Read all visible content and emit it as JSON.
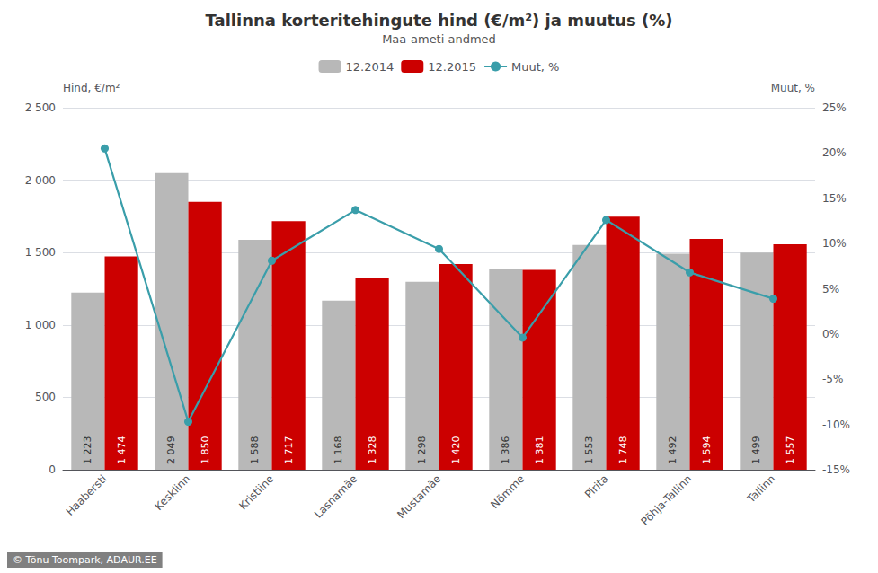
{
  "chart_data": {
    "type": "bar",
    "title": "Tallinna korteritehingute hind (€/m²) ja muutus (%)",
    "subtitle": "Maa-ameti andmed",
    "ylabel": "Hind, €/m²",
    "y2label": "Muut, %",
    "annotations": [
      "© Tõnu Toompark, ADAUR.EE"
    ],
    "categories": [
      "Haabersti",
      "Kesklinn",
      "Kristiine",
      "Lasnamäe",
      "Mustamäe",
      "Nõmme",
      "Pirita",
      "Põhja-Tallinn",
      "Tallinn"
    ],
    "series": [
      {
        "name": "12.2014",
        "color": "#b8b8b8",
        "values": [
          1223,
          2049,
          1588,
          1168,
          1298,
          1386,
          1553,
          1492,
          1499
        ],
        "value_labels": [
          "1 223",
          "2 049",
          "1 588",
          "1 168",
          "1 298",
          "1 386",
          "1 553",
          "1 492",
          "1 499"
        ]
      },
      {
        "name": "12.2015",
        "color": "#cc0000",
        "values": [
          1474,
          1850,
          1717,
          1328,
          1420,
          1381,
          1748,
          1594,
          1557
        ],
        "value_labels": [
          "1 474",
          "1 850",
          "1 717",
          "1 328",
          "1 420",
          "1 381",
          "1 748",
          "1 594",
          "1 557"
        ]
      },
      {
        "name": "Muut, %",
        "type": "line",
        "axis": "y2",
        "color": "#3a9eaa",
        "marker": "circle",
        "values": [
          20.5,
          -9.7,
          8.1,
          13.7,
          9.4,
          -0.4,
          12.6,
          6.8,
          3.9
        ]
      }
    ],
    "ylim": [
      0,
      2500
    ],
    "yticks": [
      0,
      500,
      {
        "value": 1000,
        "label": "1 000"
      },
      {
        "value": 1500,
        "label": "1 500"
      },
      {
        "value": 2000,
        "label": "2 000"
      },
      {
        "value": 2500,
        "label": "2 500"
      }
    ],
    "y2lim": [
      -15,
      25
    ],
    "y2ticks": [
      {
        "value": -15,
        "label": "-15%"
      },
      {
        "value": -10,
        "label": "-10%"
      },
      {
        "value": -5,
        "label": "-5%"
      },
      {
        "value": 0,
        "label": "0%"
      },
      {
        "value": 5,
        "label": "5%"
      },
      {
        "value": 10,
        "label": "10%"
      },
      {
        "value": 15,
        "label": "15%"
      },
      {
        "value": 20,
        "label": "20%"
      },
      {
        "value": 25,
        "label": "25%"
      }
    ],
    "grid": true,
    "legend": "top",
    "data_labels": true
  }
}
